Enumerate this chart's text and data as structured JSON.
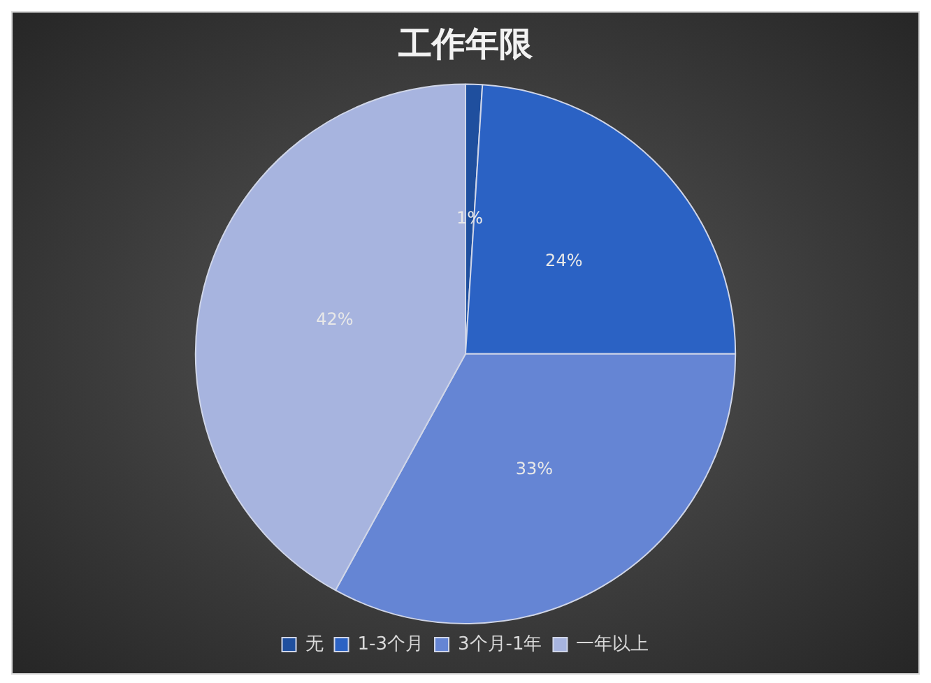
{
  "chart_data": {
    "type": "pie",
    "title": "工作年限",
    "categories": [
      "无",
      "1-3个月",
      "3个月-1年",
      "一年以上"
    ],
    "values": [
      1,
      24,
      33,
      42
    ],
    "colors": [
      "#1f4f9e",
      "#2b62c4",
      "#6585d4",
      "#a7b4df"
    ],
    "value_labels": [
      "1%",
      "24%",
      "33%",
      "42%"
    ],
    "legend": "bottom"
  }
}
